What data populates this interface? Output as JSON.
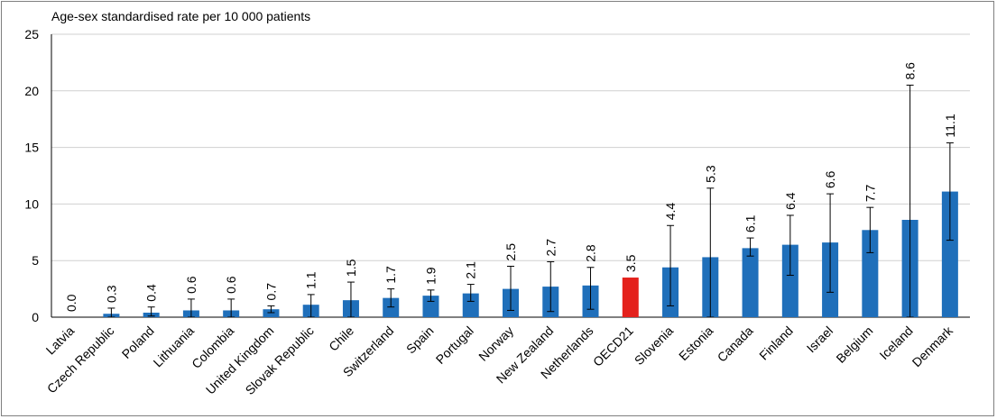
{
  "chart_data": {
    "type": "bar",
    "ylabel": "Age-sex standardised rate per 10 000 patients",
    "ylim": [
      0,
      25
    ],
    "yticks": [
      0,
      5,
      10,
      15,
      20,
      25
    ],
    "grid": true,
    "categories": [
      "Latvia",
      "Czech Republic",
      "Poland",
      "Lithuania",
      "Colombia",
      "United Kingdom",
      "Slovak Republic",
      "Chile",
      "Switzerland",
      "Spain",
      "Portugal",
      "Norway",
      "New Zealand",
      "Netherlands",
      "OECD21",
      "Slovenia",
      "Estonia",
      "Canada",
      "Finland",
      "Israel",
      "Belgium",
      "Iceland",
      "Denmark"
    ],
    "values": [
      0.0,
      0.3,
      0.4,
      0.6,
      0.6,
      0.7,
      1.1,
      1.5,
      1.7,
      1.9,
      2.1,
      2.5,
      2.7,
      2.8,
      3.5,
      4.4,
      5.3,
      6.1,
      6.4,
      6.6,
      7.7,
      8.6,
      11.1
    ],
    "value_labels": [
      "0.0",
      "0.3",
      "0.4",
      "0.6",
      "0.6",
      "0.7",
      "1.1",
      "1.5",
      "1.7",
      "1.9",
      "2.1",
      "2.5",
      "2.7",
      "2.8",
      "3.5",
      "4.4",
      "5.3",
      "6.1",
      "6.4",
      "6.6",
      "7.7",
      "8.6",
      "11.1"
    ],
    "ci_low": [
      0,
      0,
      0.1,
      0,
      0,
      0.4,
      0,
      0,
      0.9,
      1.4,
      1.4,
      0.6,
      0.5,
      0.7,
      null,
      1.0,
      0,
      5.4,
      3.7,
      2.2,
      5.7,
      0,
      6.8
    ],
    "ci_high": [
      0,
      0.8,
      0.9,
      1.6,
      1.6,
      1.0,
      2.0,
      3.1,
      2.5,
      2.4,
      2.9,
      4.5,
      4.9,
      4.4,
      null,
      8.1,
      11.4,
      7.0,
      9.0,
      10.9,
      9.7,
      20.5,
      15.4
    ],
    "colors": {
      "bar": "#1f6fba",
      "highlight": "#e4211c",
      "highlight_category": "OECD21",
      "grid": "#d0d0d0",
      "error": "#000000"
    }
  }
}
